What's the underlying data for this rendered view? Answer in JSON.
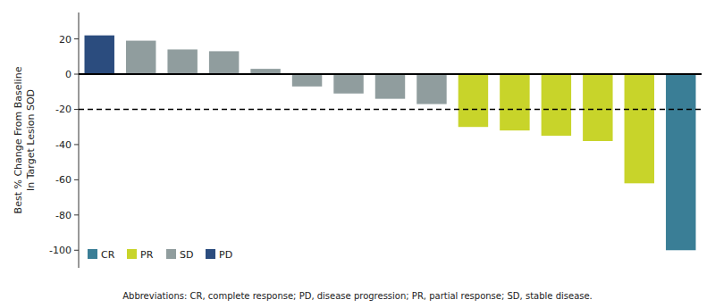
{
  "chart_data": {
    "type": "bar",
    "categories": [
      null,
      null,
      null,
      null,
      null,
      null,
      null,
      null,
      null,
      null,
      null,
      null,
      null,
      null,
      null
    ],
    "series": [
      {
        "name": "CR",
        "color": "#3A7E96",
        "values": [
          null,
          null,
          null,
          null,
          null,
          null,
          null,
          null,
          null,
          null,
          null,
          null,
          null,
          null,
          -100
        ]
      },
      {
        "name": "PR",
        "color": "#C8D42A",
        "values": [
          null,
          null,
          null,
          null,
          null,
          null,
          null,
          null,
          null,
          -30,
          -32,
          -35,
          -38,
          -62,
          null
        ]
      },
      {
        "name": "SD",
        "color": "#909D9E",
        "values": [
          null,
          19,
          14,
          13,
          3,
          -7,
          -11,
          -14,
          -17,
          null,
          null,
          null,
          null,
          null,
          null
        ]
      },
      {
        "name": "PD",
        "color": "#2B4C7E",
        "values": [
          22,
          null,
          null,
          null,
          null,
          null,
          null,
          null,
          null,
          null,
          null,
          null,
          null,
          null,
          null
        ]
      }
    ],
    "stacked": true,
    "ylabel": "Best % Change From Baseline\nIn Target Lesion SOD",
    "ylim": [
      -110,
      35
    ],
    "yticks": [
      -100,
      -80,
      -60,
      -40,
      -20,
      0,
      20
    ],
    "hlines": [
      {
        "value": 0,
        "line_style": "solid"
      },
      {
        "value": -20,
        "line_style": "dashed"
      }
    ],
    "annotations": [
      "Abbreviations: CR, complete response; PD, disease progression; PR, partial response; SD, stable disease."
    ],
    "legend": "lower left",
    "tick_labels": "y",
    "grid": false
  }
}
